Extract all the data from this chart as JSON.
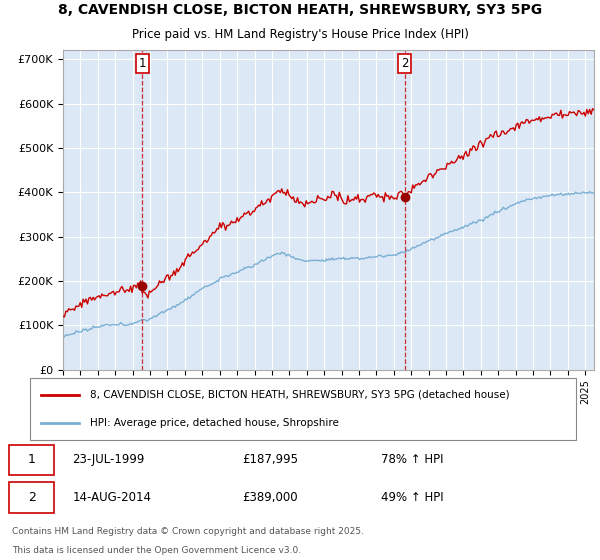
{
  "title_line1": "8, CAVENDISH CLOSE, BICTON HEATH, SHREWSBURY, SY3 5PG",
  "title_line2": "Price paid vs. HM Land Registry's House Price Index (HPI)",
  "background_color": "#ffffff",
  "plot_bg_color": "#dce8f5",
  "grid_color": "#ffffff",
  "red_line_color": "#cc0000",
  "blue_line_color": "#7aafd4",
  "dashed_vline_color": "#cc0000",
  "purchase1": {
    "date_num": 1999.56,
    "price": 187995,
    "label": "1",
    "date_str": "23-JUL-1999",
    "pct": "78%"
  },
  "purchase2": {
    "date_num": 2014.62,
    "price": 389000,
    "label": "2",
    "date_str": "14-AUG-2014",
    "pct": "49%"
  },
  "xmin": 1995.0,
  "xmax": 2025.5,
  "ymin": 0,
  "ymax": 720000,
  "yticks": [
    0,
    100000,
    200000,
    300000,
    400000,
    500000,
    600000,
    700000
  ],
  "ytick_labels": [
    "£0",
    "£100K",
    "£200K",
    "£300K",
    "£400K",
    "£500K",
    "£600K",
    "£700K"
  ],
  "legend_label_red": "8, CAVENDISH CLOSE, BICTON HEATH, SHREWSBURY, SY3 5PG (detached house)",
  "legend_label_blue": "HPI: Average price, detached house, Shropshire",
  "footer_line1": "Contains HM Land Registry data © Crown copyright and database right 2025.",
  "footer_line2": "This data is licensed under the Open Government Licence v3.0."
}
